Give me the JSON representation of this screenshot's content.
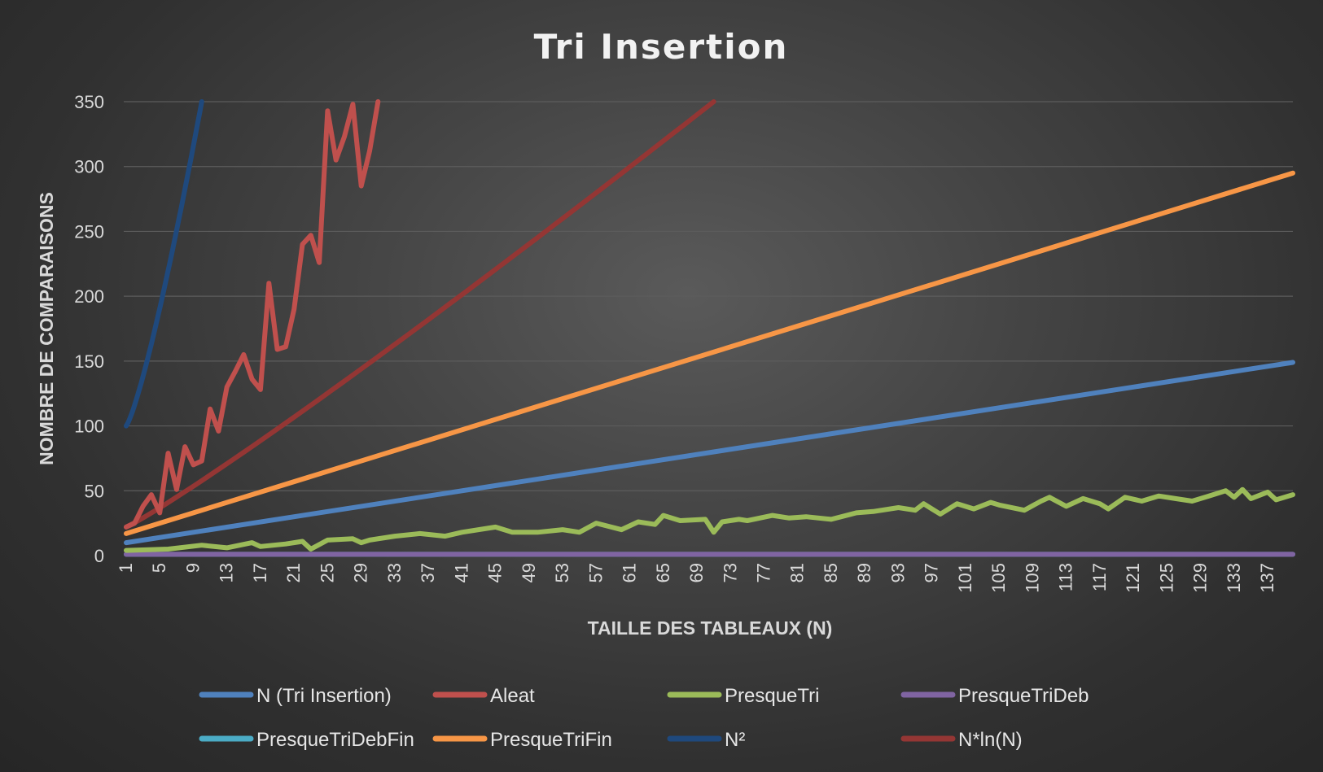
{
  "chart_data": {
    "type": "line",
    "title": "Tri Insertion",
    "xlabel": "TAILLE DES TABLEAUX (N)",
    "ylabel": "NOMBRE DE COMPARAISONS",
    "ylim": [
      0,
      350
    ],
    "yticks": [
      "0",
      "50",
      "100",
      "150",
      "200",
      "250",
      "300",
      "350"
    ],
    "xlim": [
      1,
      140
    ],
    "xticks": [
      "1",
      "5",
      "9",
      "13",
      "17",
      "21",
      "25",
      "29",
      "33",
      "37",
      "41",
      "45",
      "49",
      "53",
      "57",
      "61",
      "65",
      "69",
      "73",
      "77",
      "81",
      "85",
      "89",
      "93",
      "97",
      "101",
      "105",
      "109",
      "113",
      "117",
      "121",
      "125",
      "129",
      "133",
      "137"
    ],
    "grid": true,
    "legend_position": "bottom",
    "series": [
      {
        "name": "N (Tri Insertion)",
        "color": "#4f81bd",
        "formula": "linear",
        "x": [
          1,
          140
        ],
        "y": [
          10,
          149
        ]
      },
      {
        "name": "Aleat",
        "color": "#c0504d",
        "x": [
          1,
          2,
          3,
          4,
          5,
          6,
          7,
          8,
          9,
          10,
          11,
          12,
          13,
          14,
          15,
          16,
          17,
          18,
          19,
          20,
          21,
          22,
          23,
          24,
          25,
          26,
          27,
          28,
          29,
          30,
          31
        ],
        "y": [
          22,
          25,
          38,
          47,
          33,
          79,
          51,
          84,
          70,
          73,
          113,
          96,
          130,
          142,
          155,
          136,
          128,
          210,
          159,
          161,
          190,
          240,
          247,
          226,
          343,
          305,
          323,
          348,
          285,
          312,
          355
        ]
      },
      {
        "name": "PresqueTri",
        "color": "#9bbb59",
        "x": [
          1,
          6,
          10,
          13,
          16,
          17,
          20,
          22,
          23,
          25,
          28,
          29,
          30,
          33,
          36,
          39,
          41,
          45,
          47,
          50,
          53,
          55,
          57,
          60,
          62,
          64,
          65,
          67,
          70,
          71,
          72,
          74,
          75,
          78,
          80,
          82,
          85,
          88,
          90,
          93,
          95,
          96,
          98,
          100,
          102,
          104,
          105,
          108,
          110,
          111,
          113,
          115,
          117,
          118,
          120,
          122,
          124,
          126,
          128,
          130,
          132,
          133,
          134,
          135,
          137,
          138,
          140
        ],
        "y": [
          4,
          5,
          8,
          6,
          10,
          7,
          9,
          11,
          5,
          12,
          13,
          10,
          12,
          15,
          17,
          15,
          18,
          22,
          18,
          18,
          20,
          18,
          25,
          20,
          26,
          24,
          31,
          27,
          28,
          18,
          26,
          28,
          27,
          31,
          29,
          30,
          28,
          33,
          34,
          37,
          35,
          40,
          32,
          40,
          36,
          41,
          39,
          35,
          42,
          45,
          38,
          44,
          40,
          36,
          45,
          42,
          46,
          44,
          42,
          46,
          50,
          45,
          51,
          44,
          49,
          43,
          47
        ]
      },
      {
        "name": "PresqueTriDeb",
        "color": "#8064a2",
        "formula": "constant",
        "x": [
          1,
          140
        ],
        "y": [
          1,
          1
        ]
      },
      {
        "name": "PresqueTriDebFin",
        "color": "#4bacc6",
        "formula": "constant",
        "x": [
          1,
          140
        ],
        "y": [
          1,
          1
        ]
      },
      {
        "name": "PresqueTriFin",
        "color": "#f79646",
        "formula": "linear",
        "x": [
          1,
          140
        ],
        "y": [
          17,
          295
        ]
      },
      {
        "name": "N²",
        "color": "#1f497d",
        "formula": "square",
        "x": [
          1,
          10
        ],
        "y": [
          100,
          350
        ]
      },
      {
        "name": "N*ln(N)",
        "color": "#943634",
        "formula": "nlogn",
        "x": [
          1,
          71
        ],
        "y": [
          22,
          350
        ]
      }
    ]
  },
  "legend_rows": [
    [
      "N (Tri Insertion)",
      "Aleat",
      "PresqueTri",
      "PresqueTriDeb"
    ],
    [
      "PresqueTriDebFin",
      "PresqueTriFin",
      "N²",
      "N*ln(N)"
    ]
  ]
}
